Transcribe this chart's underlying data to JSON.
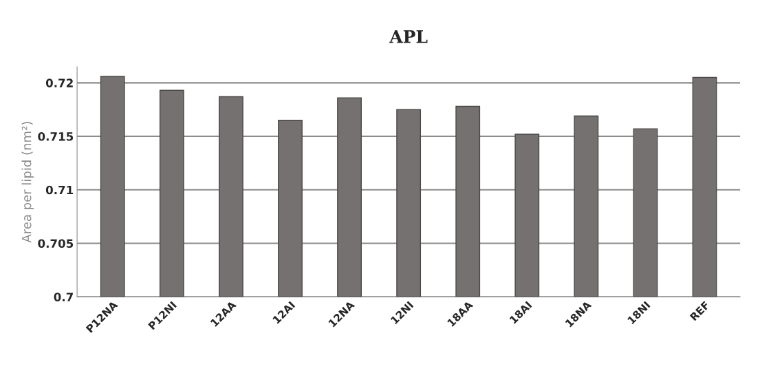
{
  "chart_data": {
    "type": "bar",
    "title": "APL",
    "ylabel": "Area per lipid (nm²)",
    "categories": [
      "P12NA",
      "P12NI",
      "12AA",
      "12AI",
      "12NA",
      "12NI",
      "18AA",
      "18AI",
      "18NA",
      "18NI",
      "REF"
    ],
    "values": [
      0.7206,
      0.7193,
      0.7187,
      0.7165,
      0.7186,
      0.7175,
      0.7178,
      0.7152,
      0.7169,
      0.7157,
      0.7205
    ],
    "color": "#757170",
    "ylim": [
      0.7,
      0.7215
    ],
    "yticks": [
      0.7,
      0.705,
      0.71,
      0.715,
      0.72
    ],
    "grid": "y",
    "legend": false
  }
}
